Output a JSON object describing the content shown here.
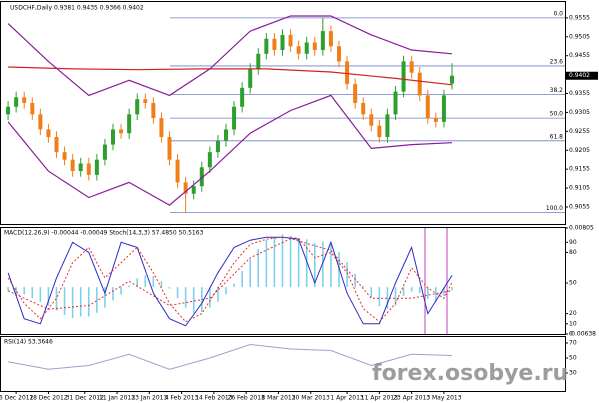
{
  "chart_data": [
    {
      "type": "candlestick",
      "title": "USDCHF,Daily 0.9381 0.9435 0.9366 0.9402",
      "x": [
        0,
        2,
        4,
        6,
        8,
        10,
        12,
        14,
        16,
        18,
        20,
        22,
        24,
        26,
        28,
        30,
        32,
        34,
        36,
        38,
        40,
        42,
        44,
        46,
        48,
        50,
        52,
        54,
        56,
        58,
        60,
        62,
        64,
        66,
        68,
        70,
        72,
        74,
        76,
        78,
        80,
        82,
        84,
        86,
        88,
        90,
        92,
        94,
        96,
        98,
        100,
        102,
        104,
        106,
        108,
        110
      ],
      "open": [
        0.93,
        0.932,
        0.9345,
        0.933,
        0.93,
        0.926,
        0.924,
        0.92,
        0.918,
        0.915,
        0.917,
        0.914,
        0.918,
        0.922,
        0.926,
        0.925,
        0.93,
        0.934,
        0.933,
        0.929,
        0.924,
        0.918,
        0.912,
        0.909,
        0.911,
        0.916,
        0.92,
        0.923,
        0.926,
        0.932,
        0.937,
        0.942,
        0.946,
        0.95,
        0.947,
        0.951,
        0.948,
        0.946,
        0.949,
        0.947,
        0.952,
        0.948,
        0.944,
        0.938,
        0.933,
        0.93,
        0.927,
        0.924,
        0.93,
        0.936,
        0.944,
        0.941,
        0.935,
        0.929,
        0.928,
        0.9381
      ],
      "high": [
        0.9335,
        0.936,
        0.936,
        0.9345,
        0.9315,
        0.9275,
        0.9255,
        0.9215,
        0.9195,
        0.9185,
        0.9185,
        0.9195,
        0.9235,
        0.9275,
        0.9275,
        0.9315,
        0.9355,
        0.9355,
        0.9345,
        0.9305,
        0.9255,
        0.9195,
        0.9135,
        0.9125,
        0.9175,
        0.9215,
        0.9245,
        0.9275,
        0.9335,
        0.9385,
        0.9435,
        0.9475,
        0.9515,
        0.9515,
        0.9525,
        0.9525,
        0.9495,
        0.9505,
        0.9505,
        0.9555,
        0.9535,
        0.9495,
        0.9455,
        0.9395,
        0.9345,
        0.9315,
        0.9285,
        0.9315,
        0.9375,
        0.9455,
        0.9455,
        0.9425,
        0.9365,
        0.9305,
        0.9365,
        0.9435
      ],
      "low": [
        0.9285,
        0.9305,
        0.9315,
        0.9285,
        0.9245,
        0.9225,
        0.9185,
        0.9165,
        0.9135,
        0.9135,
        0.9125,
        0.9125,
        0.9165,
        0.9205,
        0.9235,
        0.9235,
        0.9285,
        0.9315,
        0.9275,
        0.9225,
        0.9165,
        0.9105,
        0.904,
        0.9075,
        0.9095,
        0.9145,
        0.9185,
        0.9215,
        0.9245,
        0.9305,
        0.9355,
        0.9405,
        0.9445,
        0.9455,
        0.9455,
        0.9465,
        0.9445,
        0.9445,
        0.9455,
        0.9455,
        0.9465,
        0.9425,
        0.9365,
        0.9315,
        0.9285,
        0.9255,
        0.9225,
        0.9225,
        0.9285,
        0.9345,
        0.9395,
        0.9335,
        0.9275,
        0.9265,
        0.9265,
        0.9366
      ],
      "close": [
        0.932,
        0.9345,
        0.933,
        0.93,
        0.926,
        0.924,
        0.92,
        0.918,
        0.915,
        0.917,
        0.914,
        0.918,
        0.922,
        0.926,
        0.925,
        0.93,
        0.934,
        0.933,
        0.929,
        0.924,
        0.918,
        0.912,
        0.909,
        0.911,
        0.916,
        0.92,
        0.923,
        0.926,
        0.932,
        0.937,
        0.942,
        0.946,
        0.95,
        0.947,
        0.951,
        0.948,
        0.946,
        0.949,
        0.947,
        0.952,
        0.948,
        0.944,
        0.938,
        0.933,
        0.93,
        0.927,
        0.924,
        0.93,
        0.936,
        0.944,
        0.941,
        0.935,
        0.929,
        0.928,
        0.935,
        0.9402
      ],
      "up_color": "#2e9e2e",
      "down_color": "#f07f1a",
      "xlim": [
        -2,
        138
      ],
      "ylim": [
        0.901,
        0.9597
      ],
      "yticks": [
        0.9055,
        0.9105,
        0.9155,
        0.9205,
        0.9255,
        0.9305,
        0.9355,
        0.9455,
        0.9505,
        0.9555
      ],
      "current_price": 0.9402,
      "overlays": [
        {
          "color": "#d42020",
          "x": [
            0,
            16,
            32,
            48,
            64,
            80,
            96,
            110
          ],
          "values": [
            0.9425,
            0.942,
            0.9418,
            0.942,
            0.942,
            0.9412,
            0.9395,
            0.9378
          ]
        },
        {
          "color": "#8a1a9a",
          "x": [
            0,
            10,
            20,
            30,
            40,
            50,
            60,
            70,
            80,
            90,
            100,
            110
          ],
          "values": [
            0.954,
            0.944,
            0.935,
            0.939,
            0.935,
            0.942,
            0.952,
            0.956,
            0.956,
            0.951,
            0.947,
            0.946
          ]
        },
        {
          "color": "#8a1a9a",
          "x": [
            0,
            10,
            20,
            30,
            40,
            50,
            60,
            70,
            80,
            90,
            100,
            110
          ],
          "values": [
            0.928,
            0.915,
            0.908,
            0.912,
            0.906,
            0.915,
            0.925,
            0.931,
            0.935,
            0.921,
            0.922,
            0.9225
          ]
        }
      ],
      "fibo_color": "#6f7fc8",
      "fibo_levels": [
        {
          "label": "0.0",
          "value": 0.9555
        },
        {
          "label": "23.6",
          "value": 0.9428
        },
        {
          "label": "38.2",
          "value": 0.9352
        },
        {
          "label": "50.0",
          "value": 0.929
        },
        {
          "label": "61.8",
          "value": 0.923
        },
        {
          "label": "100.0",
          "value": 0.904
        }
      ]
    },
    {
      "type": "oscillator",
      "title": "MACD(12,26,9) -0.00044 -0.00049 Stoch(14,3,3) 57.4850 50.5163",
      "xlim": [
        -2,
        138
      ],
      "ylim": [
        0,
        104
      ],
      "yticks": [
        0,
        10,
        20,
        50,
        80,
        90
      ],
      "y2lim": [
        -0.00638,
        0.00805
      ],
      "y2ticks": [
        -0.00638,
        0.00805
      ],
      "series": [
        {
          "kind": "bar",
          "axis": "y2",
          "color": "#7fd0ea",
          "x": [
            0,
            2,
            4,
            6,
            8,
            10,
            12,
            14,
            16,
            18,
            20,
            22,
            24,
            26,
            28,
            30,
            32,
            34,
            36,
            38,
            40,
            42,
            44,
            46,
            48,
            50,
            52,
            54,
            56,
            58,
            60,
            62,
            64,
            66,
            68,
            70,
            72,
            74,
            76,
            78,
            80,
            82,
            84,
            86,
            88,
            90,
            92,
            94,
            96,
            98,
            100,
            102,
            104,
            106,
            108,
            110
          ],
          "values": [
            -0.0005,
            -0.001,
            -0.001,
            -0.0015,
            -0.002,
            -0.0025,
            -0.0032,
            -0.0038,
            -0.0042,
            -0.004,
            -0.004,
            -0.0035,
            -0.0028,
            -0.0018,
            -0.001,
            0.0002,
            0.0012,
            0.0016,
            0.0015,
            0.0008,
            -0.0002,
            -0.0015,
            -0.0028,
            -0.0035,
            -0.0034,
            -0.0028,
            -0.002,
            -0.001,
            0.0005,
            0.0022,
            0.0038,
            0.0052,
            0.0064,
            0.0068,
            0.0072,
            0.007,
            0.0066,
            0.0065,
            0.006,
            0.0062,
            0.0058,
            0.0048,
            0.0034,
            0.0018,
            0.0002,
            -0.0014,
            -0.0026,
            -0.003,
            -0.0025,
            -0.0012,
            -0.0006,
            -0.0008,
            -0.0016,
            -0.002,
            -0.0012,
            -0.00044
          ]
        },
        {
          "kind": "dotted",
          "axis": "y2",
          "color": "#e03030",
          "x": [
            0,
            10,
            20,
            30,
            40,
            50,
            60,
            70,
            80,
            90,
            100,
            110
          ],
          "values": [
            -0.0005,
            -0.003,
            -0.0025,
            0.0008,
            -0.0025,
            -0.0015,
            0.004,
            0.0066,
            0.005,
            -0.0015,
            -0.0015,
            -0.00049
          ]
        },
        {
          "kind": "line",
          "color": "#2c2cc8",
          "x": [
            0,
            4,
            8,
            12,
            16,
            20,
            24,
            28,
            32,
            36,
            40,
            44,
            48,
            52,
            56,
            60,
            64,
            68,
            72,
            76,
            80,
            84,
            88,
            92,
            96,
            100,
            104,
            108,
            110
          ],
          "values": [
            60,
            15,
            10,
            55,
            90,
            80,
            40,
            90,
            85,
            40,
            15,
            8,
            30,
            60,
            85,
            92,
            95,
            95,
            93,
            50,
            90,
            40,
            10,
            10,
            50,
            85,
            20,
            45,
            57.485
          ]
        },
        {
          "kind": "dotted",
          "color": "#e03030",
          "x": [
            0,
            4,
            8,
            12,
            16,
            20,
            24,
            28,
            32,
            36,
            40,
            44,
            48,
            52,
            56,
            60,
            64,
            68,
            72,
            76,
            80,
            84,
            88,
            92,
            96,
            100,
            104,
            108,
            110
          ],
          "values": [
            55,
            30,
            15,
            35,
            70,
            85,
            55,
            70,
            85,
            60,
            30,
            12,
            20,
            45,
            70,
            88,
            93,
            95,
            94,
            75,
            80,
            60,
            25,
            12,
            30,
            65,
            45,
            35,
            50.5163
          ]
        }
      ]
    },
    {
      "type": "line",
      "title": "RSI(14) 53.3646",
      "xlim": [
        -2,
        138
      ],
      "ylim": [
        6,
        78
      ],
      "yticks": [
        30,
        50,
        70
      ],
      "series": [
        {
          "color": "#9aa2cc",
          "x": [
            0,
            10,
            20,
            30,
            40,
            50,
            60,
            70,
            80,
            90,
            100,
            110
          ],
          "values": [
            45,
            35,
            40,
            55,
            35,
            50,
            68,
            62,
            60,
            40,
            55,
            53.3646
          ]
        }
      ],
      "xticks": [
        {
          "value": 2,
          "label": "6 Dec 2012"
        },
        {
          "value": 10,
          "label": "18 Dec 2012"
        },
        {
          "value": 19,
          "label": "31 Dec 2012"
        },
        {
          "value": 27,
          "label": "11 Jan 2013"
        },
        {
          "value": 35,
          "label": "23 Jan 2013"
        },
        {
          "value": 43,
          "label": "4 Feb 2013"
        },
        {
          "value": 51,
          "label": "14 Feb 2013"
        },
        {
          "value": 59,
          "label": "26 Feb 2013"
        },
        {
          "value": 67,
          "label": "8 Mar 2013"
        },
        {
          "value": 75,
          "label": "20 Mar 2013"
        },
        {
          "value": 84,
          "label": "1 Apr 2013"
        },
        {
          "value": 92,
          "label": "11 Apr 2013"
        },
        {
          "value": 100,
          "label": "23 Apr 2013"
        },
        {
          "value": 108,
          "label": "3 May 2013"
        }
      ]
    }
  ],
  "watermark": "forex.osobye.ru"
}
